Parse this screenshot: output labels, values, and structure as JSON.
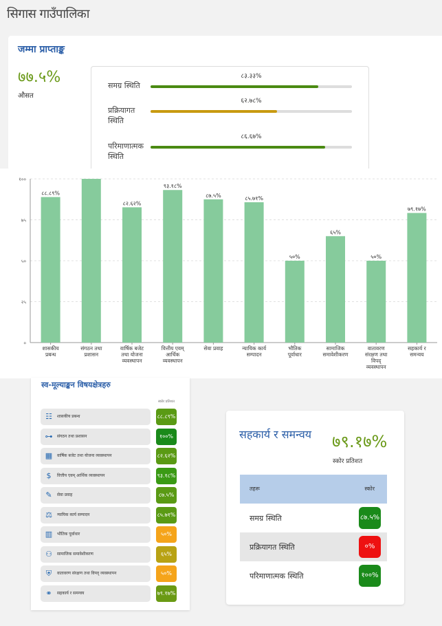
{
  "page": {
    "title": "सिगास गाउँपालिका"
  },
  "summary": {
    "heading": "जम्मा प्राप्ताङ्क",
    "percent": "७७.५%",
    "sublabel": "औसत",
    "rows": [
      {
        "label": "समग्र स्थिति",
        "value_text": "८३.३३%",
        "value": 83.33,
        "color": "#4a8a12"
      },
      {
        "label": "प्रक्रियागत स्थिति",
        "value_text": "६२.७८%",
        "value": 62.78,
        "color": "#c89a10"
      },
      {
        "label": "परिमाणात्मक स्थिति",
        "value_text": "८६.६७%",
        "value": 86.67,
        "color": "#4a8a12"
      }
    ]
  },
  "chart_data": {
    "type": "bar",
    "categories": [
      [
        "शासकीय",
        "प्रबन्ध"
      ],
      [
        "संगठन तथा",
        "प्रशासन"
      ],
      [
        "वार्षिक बजेट",
        "तथा योजना",
        "व्यवस्थापन"
      ],
      [
        "वित्तीय एवम्",
        "आर्थिक",
        "व्यवस्थापन"
      ],
      [
        "सेवा प्रवाह"
      ],
      [
        "न्यायिक कार्य",
        "सम्पादन"
      ],
      [
        "भौतिक",
        "पूर्वाधार"
      ],
      [
        "सामाजिक",
        "समावेशीकरण"
      ],
      [
        "वातावरण",
        "संरक्षण तथा",
        "विपद्",
        "व्यवस्थापन"
      ],
      [
        "सहकार्य र",
        "समन्वय"
      ]
    ],
    "values": [
      88.89,
      100,
      82.62,
      93.18,
      87.5,
      85.71,
      50,
      65,
      50,
      79.17
    ],
    "value_labels": [
      "८८.८९%",
      "",
      "८२.६२%",
      "९३.१८%",
      "८७.५%",
      "८५.७१%",
      "५०%",
      "६५%",
      "५०%",
      "७९.१७%"
    ],
    "ylim": [
      0,
      100
    ],
    "yticks": [
      0,
      25,
      50,
      75,
      100
    ],
    "ytick_labels": [
      "०",
      "२५",
      "५०",
      "७५",
      "१००"
    ],
    "grid": true,
    "bar_color": "#86cb9c"
  },
  "areas": {
    "heading": "स्व-मूल्याङ्कन विषयक्षेत्रहरु",
    "score_header": "स्कोर प्रतिशत",
    "items": [
      {
        "label": "शासकीय प्रबन्ध",
        "score": "८८.८९%",
        "color": "#5a9a14",
        "icon": "clipboard-icon",
        "glyph": "☷"
      },
      {
        "label": "संगठन तथा प्रशासन",
        "score": "१००%",
        "color": "#1a8a1a",
        "icon": "org-chart-icon",
        "glyph": "⊶"
      },
      {
        "label": "वार्षिक बजेट तथा योजना व्यवस्थापन",
        "score": "८२.६२%",
        "color": "#5a9a14",
        "icon": "calendar-icon",
        "glyph": "▦"
      },
      {
        "label": "वित्तीय एवम् आर्थिक व्यवस्थापन",
        "score": "९३.१८%",
        "color": "#3a9a14",
        "icon": "money-icon",
        "glyph": "$"
      },
      {
        "label": "सेवा प्रवाह",
        "score": "८७.५%",
        "color": "#5a9a14",
        "icon": "wrench-icon",
        "glyph": "✎"
      },
      {
        "label": "न्यायिक कार्य सम्पादन",
        "score": "८५.७१%",
        "color": "#5a9a14",
        "icon": "scales-icon",
        "glyph": "⚖"
      },
      {
        "label": "भौतिक पूर्वाधार",
        "score": "५०%",
        "color": "#f5a41a",
        "icon": "building-icon",
        "glyph": "▥"
      },
      {
        "label": "सामाजिक समावेशीकरण",
        "score": "६५%",
        "color": "#b8a214",
        "icon": "people-icon",
        "glyph": "⚇"
      },
      {
        "label": "वातावरण संरक्षण तथा विपद् व्यवस्थापन",
        "score": "५०%",
        "color": "#f5a41a",
        "icon": "shield-icon",
        "glyph": "⛨"
      },
      {
        "label": "सहकार्य र समन्वय",
        "score": "७९.१७%",
        "color": "#6a9a14",
        "icon": "handshake-icon",
        "glyph": "⚭"
      }
    ]
  },
  "detail": {
    "title": "सहकार्य र समन्वय",
    "percent": "७९.१७%",
    "sublabel": "स्कोर प्रतिशत",
    "table_header": {
      "label": "तहरू",
      "score": "स्कोर"
    },
    "rows": [
      {
        "label": "समग्र स्थिति",
        "score": "८७.५%",
        "color": "#1a8a1a",
        "bg": "#ffffff"
      },
      {
        "label": "प्रक्रियागत स्थिति",
        "score": "०%",
        "color": "#ee1111",
        "bg": "#e6e6e6"
      },
      {
        "label": "परिमाणात्मक स्थिति",
        "score": "१००%",
        "color": "#1a8a1a",
        "bg": "#ffffff"
      }
    ]
  }
}
